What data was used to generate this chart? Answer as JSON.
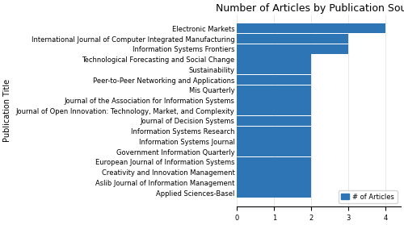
{
  "title": "Number of Articles by Publication Source",
  "xlabel": "",
  "ylabel": "Publication Title",
  "categories": [
    "Applied Sciences-Basel",
    "Aslib Journal of Information Management",
    "Creativity and Innovation Management",
    "European Journal of Information Systems",
    "Government Information Quarterly",
    "Information Systems Journal",
    "Information Systems Research",
    "Journal of Decision Systems",
    "Journal of Open Innovation: Technology, Market, and Complexity",
    "Journal of the Association for Information Systems",
    "Mis Quarterly",
    "Peer-to-Peer Networking and Applications",
    "Sustainability",
    "Technological Forecasting and Social Change",
    "Information Systems Frontiers",
    "International Journal of Computer Integrated Manufacturing",
    "Electronic Markets"
  ],
  "values": [
    2,
    2,
    2,
    2,
    2,
    2,
    2,
    2,
    2,
    2,
    2,
    2,
    2,
    2,
    3,
    3,
    4
  ],
  "bar_color": "#2e75b6",
  "xlim": [
    0,
    4.4
  ],
  "xticks": [
    0,
    1,
    2,
    3,
    4
  ],
  "legend_label": "# of Articles",
  "title_fontsize": 9,
  "tick_fontsize": 6,
  "ylabel_fontsize": 7,
  "bar_height": 0.97
}
